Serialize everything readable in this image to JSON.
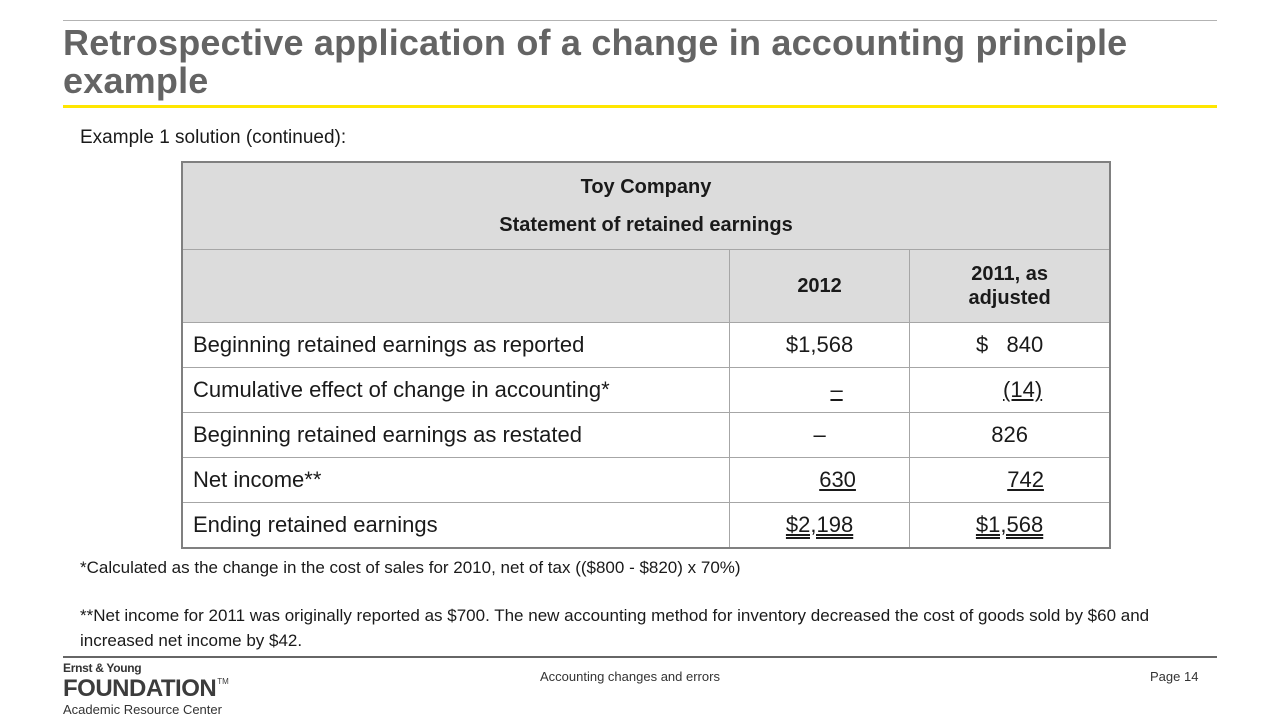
{
  "slide": {
    "title": "Retrospective application of a change in accounting principle example",
    "subtitle": "Example 1 solution (continued):"
  },
  "table": {
    "company": "Toy Company",
    "statement": "Statement of retained earnings",
    "col1": "2012",
    "col2": "2011, as adjusted",
    "rows": [
      {
        "label": "Beginning retained earnings as reported",
        "v2012": "$1,568",
        "v2011": "$   840"
      },
      {
        "label": "Cumulative effect of change in accounting*",
        "v2012": "–",
        "v2011": "(14)"
      },
      {
        "label": "Beginning retained earnings as restated",
        "v2012": "–",
        "v2011": "826"
      },
      {
        "label": "Net income**",
        "v2012": "630",
        "v2011": "742"
      },
      {
        "label": "Ending retained earnings",
        "v2012": "$2,198",
        "v2011": "$1,568"
      }
    ]
  },
  "notes": {
    "note1": "*Calculated as the change in the cost of sales for 2010, net of tax (($800 - $820) x 70%)",
    "note2": "**Net income for 2011 was originally reported as $700.  The new accounting method for inventory decreased the cost of goods sold by $60 and increased net income by $42."
  },
  "footer": {
    "logo_small": "Ernst & Young",
    "logo_main": "FOUNDATION",
    "logo_tm": "TM",
    "logo_sub": "Academic Resource Center",
    "center": "Accounting changes and errors",
    "page": "Page 14"
  },
  "colors": {
    "accent": "#ffe600",
    "title": "#646464",
    "header_fill": "#dcdcdc",
    "link_underline": "#1f3a93"
  }
}
